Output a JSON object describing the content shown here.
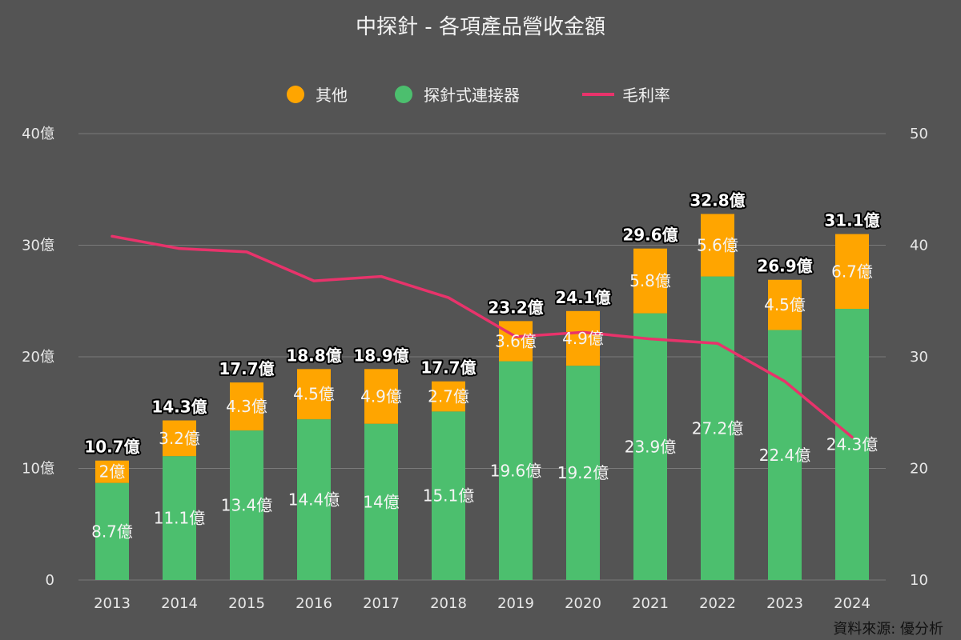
{
  "chart_data": {
    "type": "bar",
    "stacked": true,
    "title": "中探針 - 各項產品營收金額",
    "categories": [
      "2013",
      "2014",
      "2015",
      "2016",
      "2017",
      "2018",
      "2019",
      "2020",
      "2021",
      "2022",
      "2023",
      "2024"
    ],
    "series": [
      {
        "name": "探針式連接器",
        "kind": "bar",
        "axis": "left",
        "color": "#4cbf6e",
        "values": [
          8.7,
          11.1,
          13.4,
          14.4,
          14,
          15.1,
          19.6,
          19.2,
          23.9,
          27.2,
          22.4,
          24.3
        ]
      },
      {
        "name": "其他",
        "kind": "bar",
        "axis": "left",
        "color": "#ffa500",
        "values": [
          2,
          3.2,
          4.3,
          4.5,
          4.9,
          2.7,
          3.6,
          4.9,
          5.8,
          5.6,
          4.5,
          6.7
        ]
      },
      {
        "name": "毛利率",
        "kind": "line",
        "axis": "right",
        "color": "#e8336b",
        "values": [
          40.8,
          39.7,
          39.4,
          36.8,
          37.2,
          35.3,
          31.8,
          32.2,
          31.6,
          31.2,
          27.8,
          22.8
        ]
      }
    ],
    "totals": [
      10.7,
      14.3,
      17.7,
      18.8,
      18.9,
      17.7,
      23.2,
      24.1,
      29.6,
      32.8,
      26.9,
      31.1
    ],
    "value_suffix": "億",
    "y_left": {
      "min": 0,
      "max": 40,
      "ticks": [
        0,
        10,
        20,
        30,
        40
      ],
      "tick_labels": [
        "0",
        "10億",
        "20億",
        "30億",
        "40億"
      ]
    },
    "y_right": {
      "min": 10,
      "max": 50,
      "ticks": [
        10,
        20,
        30,
        40,
        50
      ],
      "tick_labels": [
        "10",
        "20",
        "30",
        "40",
        "50"
      ]
    },
    "legend": {
      "placement": "top-center",
      "items": [
        {
          "name": "其他",
          "shape": "circle",
          "color": "#ffa500"
        },
        {
          "name": "探針式連接器",
          "shape": "circle",
          "color": "#4cbf6e"
        },
        {
          "name": "毛利率",
          "shape": "line",
          "color": "#e8336b"
        }
      ]
    },
    "grid": true,
    "source": "資料來源: 優分析"
  }
}
